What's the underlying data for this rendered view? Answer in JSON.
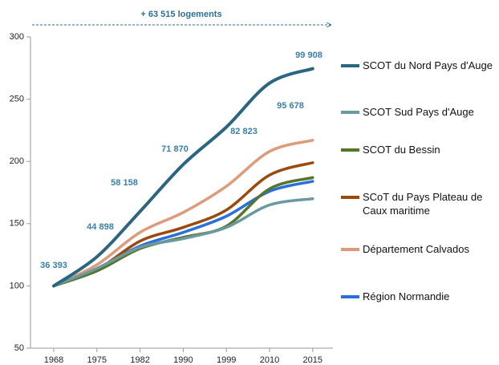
{
  "chart_data": {
    "type": "line",
    "annotation": "+ 63 515 logements",
    "categories": [
      "1968",
      "1975",
      "1982",
      "1990",
      "1999",
      "2010",
      "2015"
    ],
    "series": [
      {
        "name": "SCOT du Nord Pays d'Auge",
        "color": "#2b6580",
        "values": [
          100,
          123.4,
          159.8,
          197.5,
          227.6,
          262.9,
          274.5
        ],
        "data_labels": [
          "36 393",
          "44 898",
          "58 158",
          "71 870",
          "82 823",
          "95 678",
          "99 908"
        ]
      },
      {
        "name": "SCOT Sud Pays d'Auge",
        "color": "#6a9a9f",
        "values": [
          100,
          114,
          131,
          138,
          147,
          165,
          170
        ]
      },
      {
        "name": "SCOT du Bessin",
        "color": "#56752c",
        "values": [
          100,
          112,
          130,
          139,
          148,
          178,
          187
        ]
      },
      {
        "name": "SCoT du Pays Plateau de Caux maritime",
        "color": "#9a4a0c",
        "values": [
          100,
          113,
          136,
          147,
          161,
          189,
          199
        ]
      },
      {
        "name": "Département Calvados",
        "color": "#dc9c7c",
        "values": [
          100,
          117,
          143,
          159,
          180,
          208,
          217
        ]
      },
      {
        "name": "Région Normandie",
        "color": "#2a6fdb",
        "values": [
          100,
          114,
          132,
          143,
          156,
          176,
          184
        ]
      }
    ],
    "ylim": [
      50,
      300
    ],
    "yticks": [
      50,
      100,
      150,
      200,
      250,
      300
    ],
    "grid": false
  }
}
